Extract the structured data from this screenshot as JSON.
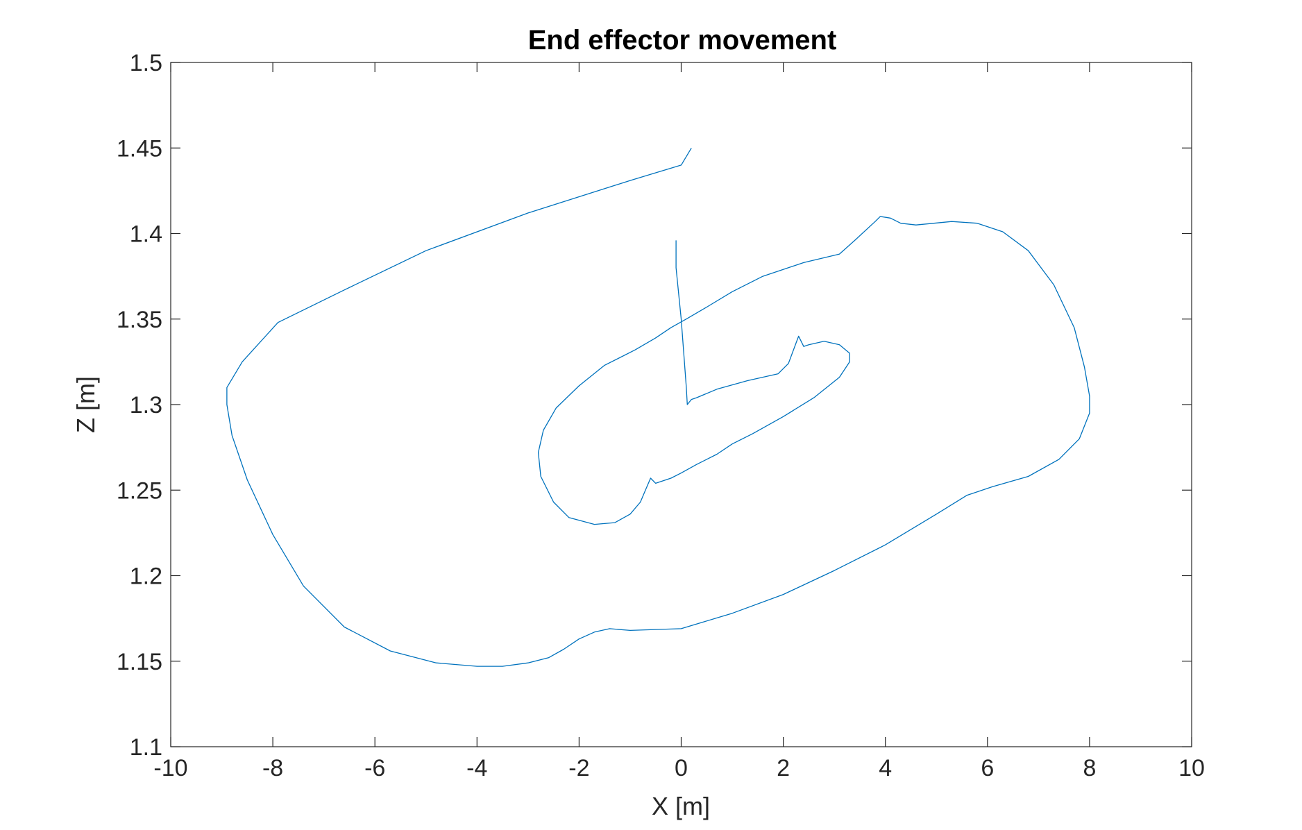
{
  "chart_data": {
    "type": "line",
    "title": "End effector movement",
    "xlabel": "X [m]",
    "ylabel": "Z [m]",
    "xlim": [
      -10,
      10
    ],
    "ylim": [
      1.1,
      1.5
    ],
    "xticks": [
      "-10",
      "-8",
      "-6",
      "-4",
      "-2",
      "0",
      "2",
      "4",
      "6",
      "8",
      "10"
    ],
    "yticks": [
      "1.1",
      "1.15",
      "1.2",
      "1.25",
      "1.3",
      "1.35",
      "1.4",
      "1.45",
      "1.5"
    ],
    "grid": false,
    "legend": "none",
    "colors": {
      "line": "#0072BD",
      "axes": "#262626",
      "background": "#ffffff"
    },
    "series": [
      {
        "x": [
          -0.1,
          -0.1,
          0.0,
          0.1,
          0.12,
          0.2,
          0.3,
          0.7,
          1.3,
          1.9,
          2.1,
          2.3,
          2.4,
          2.5,
          2.8,
          3.1,
          3.3,
          3.3,
          3.1,
          2.6,
          2.0,
          1.4,
          1.0,
          0.7,
          0.3,
          0.0,
          -0.2,
          -0.5,
          -0.6,
          -0.7,
          -0.8,
          -1.0,
          -1.3,
          -1.7,
          -2.2,
          -2.5,
          -2.75,
          -2.8,
          -2.7,
          -2.45,
          -2.0,
          -1.5,
          -0.9,
          -0.5,
          -0.2,
          0.1,
          0.5,
          1.0,
          1.6,
          2.4,
          3.1,
          3.4,
          3.8,
          3.9,
          4.1,
          4.3,
          4.6,
          5.3,
          5.8,
          6.3,
          6.8,
          7.3,
          7.7,
          7.9,
          8.0,
          8.0,
          7.8,
          7.4,
          6.8,
          6.1,
          5.6,
          5.0,
          4.0,
          3.0,
          2.0,
          1.0,
          0.0,
          -1.0,
          -1.4,
          -1.7,
          -2.0,
          -2.3,
          -2.6,
          -3.0,
          -3.5,
          -4.0,
          -4.8,
          -5.7,
          -6.6,
          -7.4,
          -8.0,
          -8.5,
          -8.8,
          -8.9,
          -8.9,
          -8.6,
          -7.9,
          -6.6,
          -5.0,
          -3.0,
          -1.0,
          0.0,
          0.2
        ],
        "y": [
          1.396,
          1.38,
          1.35,
          1.31,
          1.3,
          1.303,
          1.304,
          1.309,
          1.314,
          1.318,
          1.324,
          1.34,
          1.334,
          1.335,
          1.337,
          1.335,
          1.33,
          1.325,
          1.316,
          1.304,
          1.293,
          1.283,
          1.277,
          1.271,
          1.265,
          1.26,
          1.257,
          1.254,
          1.257,
          1.25,
          1.243,
          1.236,
          1.231,
          1.23,
          1.234,
          1.243,
          1.258,
          1.272,
          1.285,
          1.298,
          1.311,
          1.323,
          1.332,
          1.339,
          1.345,
          1.35,
          1.357,
          1.366,
          1.375,
          1.383,
          1.388,
          1.396,
          1.407,
          1.41,
          1.409,
          1.406,
          1.405,
          1.407,
          1.406,
          1.401,
          1.39,
          1.37,
          1.345,
          1.322,
          1.305,
          1.295,
          1.28,
          1.268,
          1.258,
          1.252,
          1.247,
          1.236,
          1.218,
          1.203,
          1.189,
          1.178,
          1.169,
          1.168,
          1.169,
          1.167,
          1.163,
          1.157,
          1.152,
          1.149,
          1.147,
          1.147,
          1.149,
          1.156,
          1.17,
          1.194,
          1.224,
          1.256,
          1.282,
          1.3,
          1.31,
          1.325,
          1.348,
          1.367,
          1.39,
          1.412,
          1.431,
          1.44,
          1.45
        ]
      }
    ]
  }
}
